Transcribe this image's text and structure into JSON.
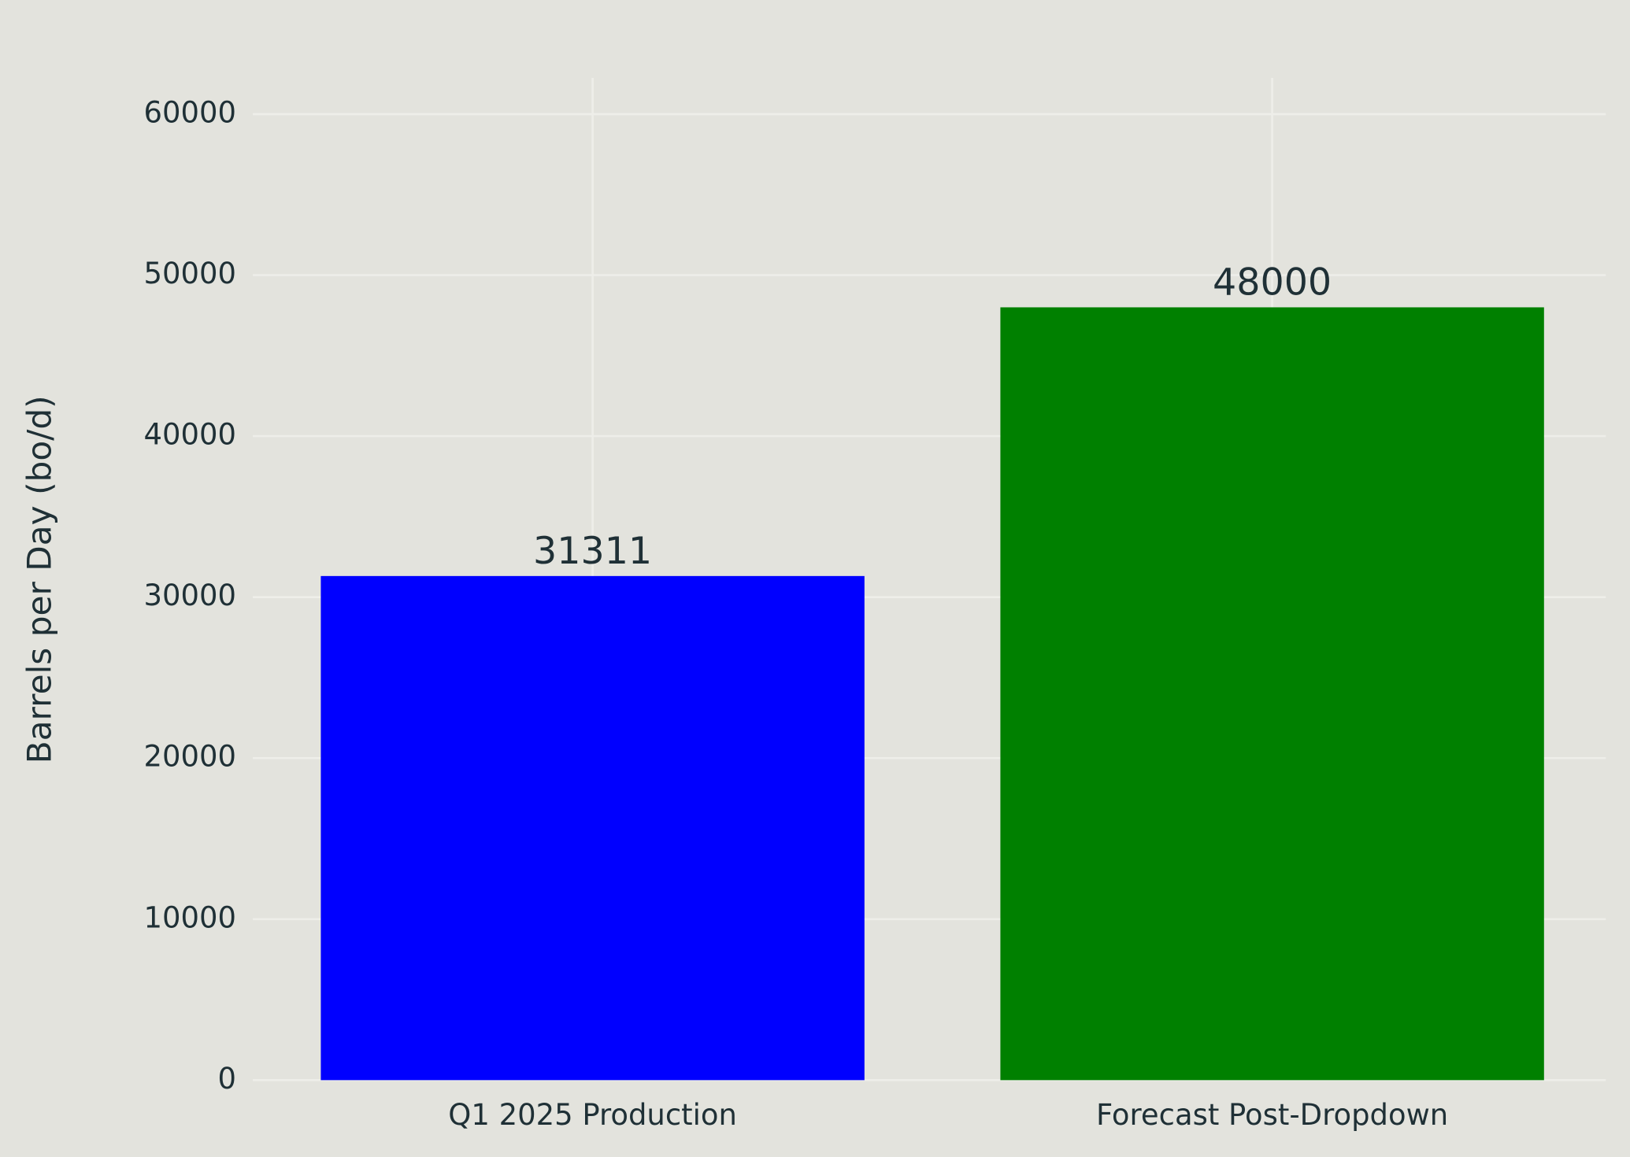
{
  "chart_data": {
    "type": "bar",
    "y_label": "Barrels per Day (bo/d)",
    "categories": [
      "Q1 2025 Production",
      "Forecast Post-Dropdown"
    ],
    "values": [
      31311,
      48000
    ],
    "colors": [
      "#0000ff",
      "#008000"
    ],
    "ylim": [
      0,
      62250
    ],
    "yticks": [
      0,
      10000,
      20000,
      30000,
      40000,
      50000,
      60000
    ],
    "grid": true,
    "show_value_labels": true
  }
}
